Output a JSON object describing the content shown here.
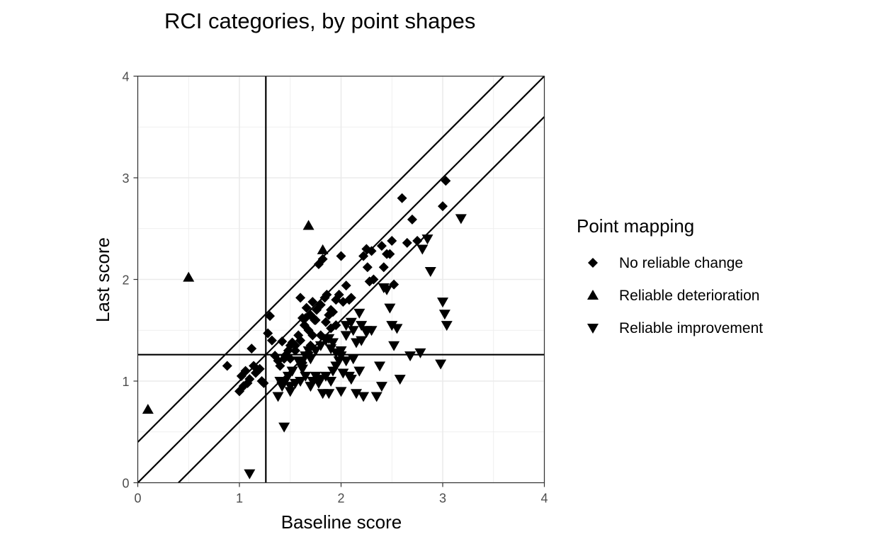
{
  "chart_data": {
    "type": "scatter",
    "title": "RCI categories, by point shapes",
    "xlabel": "Baseline score",
    "ylabel": "Last score",
    "xlim": [
      0,
      4
    ],
    "ylim": [
      0,
      4
    ],
    "xticks": [
      "0",
      "1",
      "2",
      "3",
      "4"
    ],
    "yticks": [
      "0",
      "1",
      "2",
      "3",
      "4"
    ],
    "grid": true,
    "cutoff": {
      "x": 1.26,
      "y": 1.26
    },
    "diagonal_bands": [
      {
        "intercept": 0.4,
        "slope": 1
      },
      {
        "intercept": 0,
        "slope": 1
      },
      {
        "intercept": -0.4,
        "slope": 1
      }
    ],
    "legend": {
      "title": "Point mapping",
      "position": "right",
      "entries": [
        {
          "label": "No reliable change",
          "shape": "diamond"
        },
        {
          "label": "Reliable deterioration",
          "shape": "triangle-up"
        },
        {
          "label": "Reliable improvement",
          "shape": "triangle-down"
        }
      ]
    },
    "series": [
      {
        "name": "No reliable change",
        "shape": "diamond",
        "x": [
          0.88,
          1.0,
          1.02,
          1.04,
          1.06,
          1.08,
          1.1,
          1.12,
          1.14,
          1.16,
          1.2,
          1.22,
          1.24,
          1.28,
          1.3,
          1.32,
          1.35,
          1.38,
          1.4,
          1.42,
          1.45,
          1.48,
          1.5,
          1.52,
          1.55,
          1.58,
          1.6,
          1.62,
          1.64,
          1.66,
          1.68,
          1.7,
          1.72,
          1.74,
          1.76,
          1.78,
          1.8,
          1.82,
          1.84,
          1.86,
          1.88,
          1.9,
          1.92,
          1.95,
          1.98,
          2.0,
          2.02,
          2.05,
          2.08,
          2.1,
          2.22,
          2.25,
          2.26,
          2.28,
          2.3,
          2.32,
          2.4,
          2.42,
          2.45,
          2.48,
          2.5,
          2.52,
          2.6,
          2.65,
          2.7,
          2.75,
          3.0,
          3.03,
          1.6,
          1.55,
          1.65,
          1.7,
          1.75,
          1.8,
          1.9,
          1.85,
          1.95,
          1.72,
          1.68,
          1.62,
          1.5,
          1.44
        ],
        "y": [
          1.15,
          0.9,
          1.05,
          0.95,
          1.1,
          0.98,
          1.02,
          1.32,
          1.15,
          1.08,
          1.12,
          1.0,
          0.98,
          1.47,
          1.64,
          1.4,
          1.25,
          1.2,
          1.15,
          1.39,
          1.25,
          1.3,
          1.22,
          1.38,
          1.35,
          1.45,
          1.82,
          1.62,
          1.55,
          1.72,
          1.5,
          1.65,
          1.78,
          1.6,
          1.7,
          2.15,
          1.75,
          2.2,
          1.82,
          1.85,
          1.65,
          1.7,
          1.68,
          1.8,
          1.85,
          2.23,
          1.78,
          1.94,
          1.8,
          1.82,
          2.23,
          2.3,
          2.12,
          1.98,
          2.28,
          2.0,
          2.33,
          2.12,
          2.25,
          2.25,
          2.38,
          1.95,
          2.8,
          2.36,
          2.59,
          2.38,
          2.72,
          2.97,
          1.4,
          1.3,
          1.62,
          1.35,
          1.6,
          1.45,
          1.52,
          1.58,
          1.55,
          1.45,
          1.28,
          1.18,
          1.35,
          1.22
        ]
      },
      {
        "name": "Reliable deterioration",
        "shape": "triangle-up",
        "x": [
          0.1,
          0.5,
          1.68,
          1.82
        ],
        "y": [
          0.72,
          2.02,
          2.53,
          2.29
        ]
      },
      {
        "name": "Reliable improvement",
        "shape": "triangle-down",
        "x": [
          1.1,
          1.38,
          1.4,
          1.42,
          1.44,
          1.48,
          1.5,
          1.52,
          1.55,
          1.58,
          1.6,
          1.62,
          1.65,
          1.68,
          1.7,
          1.72,
          1.75,
          1.78,
          1.8,
          1.82,
          1.85,
          1.88,
          1.9,
          1.92,
          1.95,
          1.98,
          2.0,
          2.02,
          2.05,
          2.08,
          2.1,
          2.12,
          2.15,
          2.18,
          2.2,
          2.22,
          2.25,
          2.3,
          2.35,
          2.38,
          2.4,
          2.42,
          2.45,
          2.48,
          2.5,
          2.52,
          2.55,
          2.58,
          2.68,
          2.78,
          2.8,
          2.85,
          2.88,
          2.98,
          3.0,
          3.02,
          3.04,
          3.18,
          1.75,
          1.8,
          1.85,
          1.9,
          1.95,
          2.0,
          2.05,
          2.1,
          2.15,
          1.65,
          1.7,
          1.6,
          2.2,
          2.25,
          1.45,
          1.5,
          2.0,
          2.05,
          1.88,
          1.92,
          2.12,
          2.18
        ],
        "y": [
          0.09,
          0.85,
          1.0,
          0.95,
          0.55,
          1.05,
          0.9,
          1.1,
          0.98,
          1.2,
          1.0,
          1.12,
          1.05,
          1.3,
          0.95,
          1.0,
          1.05,
          0.98,
          1.02,
          0.88,
          1.05,
          0.88,
          1.0,
          1.1,
          1.15,
          1.2,
          0.9,
          1.08,
          1.55,
          1.05,
          1.02,
          1.5,
          0.88,
          1.67,
          1.4,
          0.85,
          1.5,
          1.5,
          0.85,
          1.15,
          0.95,
          1.92,
          1.9,
          1.72,
          1.55,
          1.35,
          1.52,
          1.02,
          1.25,
          1.28,
          2.3,
          2.4,
          2.08,
          1.17,
          1.78,
          1.66,
          1.55,
          2.6,
          1.3,
          1.35,
          1.4,
          1.32,
          1.28,
          1.25,
          1.45,
          1.58,
          1.38,
          1.25,
          1.22,
          1.18,
          1.55,
          1.48,
          1.0,
          0.95,
          1.3,
          1.2,
          1.42,
          1.38,
          1.22,
          1.1
        ]
      }
    ]
  }
}
